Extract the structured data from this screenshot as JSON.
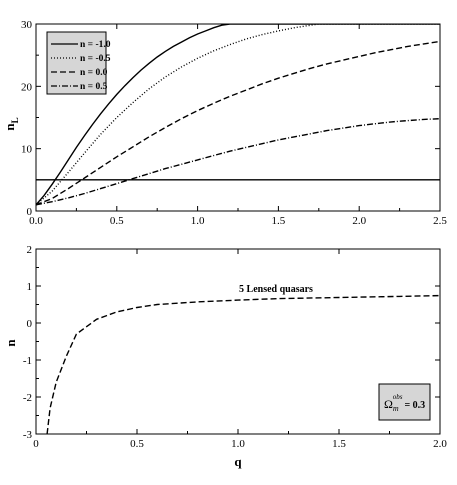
{
  "chart_data": [
    {
      "type": "line",
      "title": "",
      "xlabel": "",
      "ylabel": "n",
      "ylabel_subscript": "L",
      "xlim": [
        0,
        2.5
      ],
      "ylim": [
        0,
        30
      ],
      "xticks": [
        "0.0",
        "0.5",
        "1.0",
        "1.5",
        "2.0",
        "2.5"
      ],
      "yticks": [
        "0",
        "10",
        "20",
        "30"
      ],
      "grid": false,
      "legend_position": "top-left",
      "series": [
        {
          "name": "n = -1.0",
          "style": "solid",
          "x": [
            0.0,
            0.05,
            0.1,
            0.15,
            0.2,
            0.25,
            0.3,
            0.35,
            0.4,
            0.45,
            0.5,
            0.55,
            0.6,
            0.65,
            0.7,
            0.75,
            0.8,
            0.85,
            0.9,
            0.95,
            1.0,
            1.05,
            1.1,
            1.15,
            1.2,
            1.5,
            2.0,
            2.5
          ],
          "y": [
            1.0,
            2.5,
            4.3,
            6.2,
            8.2,
            10.2,
            12.1,
            13.9,
            15.6,
            17.2,
            18.7,
            20.1,
            21.4,
            22.6,
            23.7,
            24.7,
            25.6,
            26.4,
            27.1,
            27.8,
            28.4,
            28.9,
            29.4,
            29.8,
            30.0,
            30.0,
            30.0,
            30.0
          ]
        },
        {
          "name": "n = -0.5",
          "style": "dotted",
          "x": [
            0.0,
            0.1,
            0.2,
            0.3,
            0.4,
            0.5,
            0.6,
            0.7,
            0.8,
            0.9,
            1.0,
            1.1,
            1.2,
            1.3,
            1.4,
            1.5,
            1.6,
            1.7,
            1.75,
            2.0,
            2.5
          ],
          "y": [
            1.0,
            3.2,
            6.2,
            9.3,
            12.3,
            15.0,
            17.4,
            19.6,
            21.5,
            23.1,
            24.5,
            25.7,
            26.7,
            27.6,
            28.3,
            28.9,
            29.4,
            29.8,
            30.0,
            30.0,
            30.0
          ]
        },
        {
          "name": "n = 0.0",
          "style": "dashed",
          "x": [
            0.0,
            0.1,
            0.2,
            0.3,
            0.4,
            0.5,
            0.6,
            0.7,
            0.8,
            0.9,
            1.0,
            1.1,
            1.2,
            1.3,
            1.4,
            1.5,
            1.6,
            1.7,
            1.8,
            1.9,
            2.0,
            2.1,
            2.2,
            2.3,
            2.4,
            2.5
          ],
          "y": [
            1.0,
            2.0,
            3.6,
            5.3,
            7.0,
            8.7,
            10.3,
            11.9,
            13.4,
            14.8,
            16.1,
            17.3,
            18.4,
            19.4,
            20.4,
            21.3,
            22.1,
            22.9,
            23.6,
            24.2,
            24.8,
            25.4,
            25.9,
            26.4,
            26.8,
            27.2
          ]
        },
        {
          "name": "n = 0.5",
          "style": "dash-dot",
          "x": [
            0.0,
            0.1,
            0.2,
            0.3,
            0.4,
            0.5,
            0.6,
            0.7,
            0.8,
            0.9,
            1.0,
            1.1,
            1.2,
            1.3,
            1.4,
            1.5,
            1.6,
            1.7,
            1.8,
            1.9,
            2.0,
            2.1,
            2.2,
            2.3,
            2.4,
            2.5
          ],
          "y": [
            1.0,
            1.5,
            2.1,
            2.8,
            3.6,
            4.4,
            5.2,
            6.0,
            6.8,
            7.5,
            8.2,
            8.9,
            9.6,
            10.2,
            10.8,
            11.4,
            11.9,
            12.4,
            12.9,
            13.3,
            13.7,
            14.0,
            14.3,
            14.5,
            14.7,
            14.8
          ]
        },
        {
          "name": "",
          "style": "solid",
          "x": [
            0.0,
            2.5
          ],
          "y": [
            5.0,
            5.0
          ]
        }
      ]
    },
    {
      "type": "line",
      "title": "",
      "xlabel": "q",
      "ylabel": "n",
      "xlim": [
        0,
        2.0
      ],
      "ylim": [
        -3,
        2
      ],
      "xticks": [
        "0",
        "0.5",
        "1.0",
        "1.5",
        "2.0"
      ],
      "yticks": [
        "-3",
        "-2",
        "-1",
        "0",
        "1",
        "2"
      ],
      "grid": false,
      "annotation": "5 Lensed quasars",
      "omega_label": {
        "symbol": "Ω",
        "subscript": "m",
        "superscript": "obs",
        "value": "= 0.3"
      },
      "series": [
        {
          "name": "",
          "style": "dashed",
          "x": [
            0.055,
            0.07,
            0.1,
            0.15,
            0.2,
            0.25,
            0.3,
            0.4,
            0.5,
            0.6,
            0.8,
            1.0,
            1.2,
            1.5,
            1.8,
            2.0
          ],
          "y": [
            -3.0,
            -2.3,
            -1.6,
            -0.9,
            -0.3,
            -0.1,
            0.1,
            0.3,
            0.42,
            0.5,
            0.57,
            0.62,
            0.66,
            0.69,
            0.72,
            0.74
          ]
        }
      ]
    }
  ],
  "colors": {
    "background": "#ffffff",
    "ink": "#000000",
    "box_fill": "#d6d6d6"
  }
}
